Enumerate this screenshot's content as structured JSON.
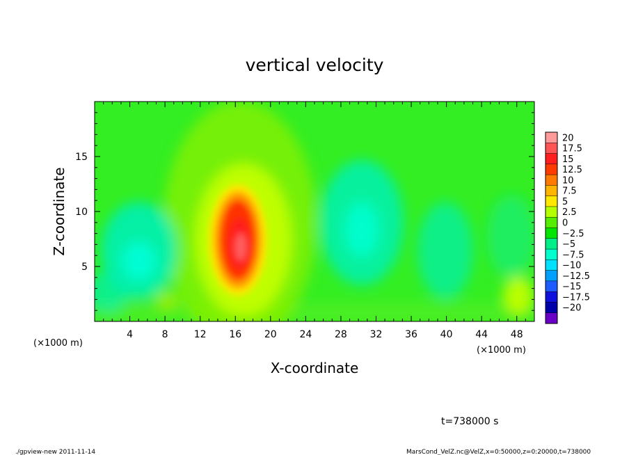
{
  "chart_data": {
    "type": "heatmap",
    "title": "vertical velocity",
    "xlabel": "X-coordinate",
    "ylabel": "Z-coordinate",
    "x_unit": "(×1000 m)",
    "x_unit_right": "(×1000 m)",
    "xlim": [
      0,
      50
    ],
    "ylim": [
      0,
      20
    ],
    "x_ticks": [
      4,
      8,
      12,
      16,
      20,
      24,
      28,
      32,
      36,
      40,
      44,
      48
    ],
    "y_ticks": [
      5,
      10,
      15
    ],
    "colorbar": {
      "levels": [
        "20",
        "17.5",
        "15",
        "12.5",
        "10",
        "7.5",
        "5",
        "2.5",
        "0",
        "−2.5",
        "−5",
        "−7.5",
        "−10",
        "−12.5",
        "−15",
        "−17.5",
        "−20"
      ],
      "colors": [
        "#ff9a9a",
        "#ff5555",
        "#ff1f1f",
        "#ff3c00",
        "#ff7a00",
        "#ffb400",
        "#ffe800",
        "#b4ff00",
        "#55ee00",
        "#00e600",
        "#00ee88",
        "#00ffcc",
        "#00e0ff",
        "#00a0ff",
        "#1e5cff",
        "#1010dd",
        "#0000aa",
        "#6a00c8"
      ]
    },
    "field_features": [
      {
        "kind": "updraft",
        "x_center_km": 16.5,
        "z_center_km": 7.0,
        "peak_w": 17.5
      },
      {
        "kind": "downdraft",
        "x_center_km": 5.0,
        "z_center_km": 6.0,
        "min_w": -5
      },
      {
        "kind": "downdraft",
        "x_center_km": 30.5,
        "z_center_km": 8.0,
        "min_w": -5
      },
      {
        "kind": "downdraft",
        "x_center_km": 40.0,
        "z_center_km": 6.5,
        "min_w": -5
      },
      {
        "kind": "weak-updraft",
        "x_center_km": 48.5,
        "z_center_km": 2.0,
        "peak_w": 5
      }
    ]
  },
  "time_label": "t=738000 s",
  "footer": {
    "left": "./gpview-new   2011-11-14",
    "right": "MarsCond_VelZ.nc@VelZ,x=0:50000,z=0:20000,t=738000"
  }
}
